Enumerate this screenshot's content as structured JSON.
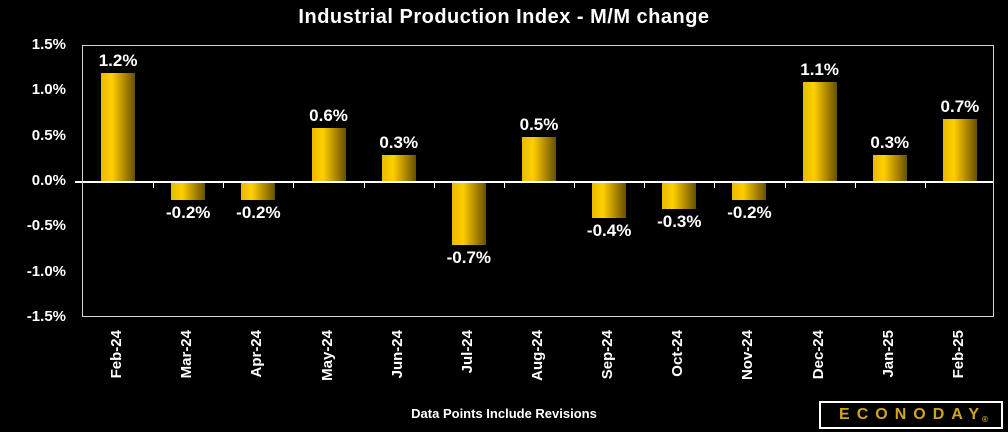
{
  "title": "Industrial Production Index - M/M change",
  "chart_data": {
    "type": "bar",
    "title": "Industrial Production Index - M/M change",
    "categories": [
      "Feb-24",
      "Mar-24",
      "Apr-24",
      "May-24",
      "Jun-24",
      "Jul-24",
      "Aug-24",
      "Sep-24",
      "Oct-24",
      "Nov-24",
      "Dec-24",
      "Jan-25",
      "Feb-25"
    ],
    "values": [
      1.2,
      -0.2,
      -0.2,
      0.6,
      0.3,
      -0.7,
      0.5,
      -0.4,
      -0.3,
      -0.2,
      1.1,
      0.3,
      0.7
    ],
    "value_labels": [
      "1.2%",
      "-0.2%",
      "-0.2%",
      "0.6%",
      "0.3%",
      "-0.7%",
      "0.5%",
      "-0.4%",
      "-0.3%",
      "-0.2%",
      "1.1%",
      "0.3%",
      "0.7%"
    ],
    "xlabel": "",
    "ylabel": "",
    "ylim": [
      -1.5,
      1.5
    ],
    "ytick_step": 0.5,
    "ytick_labels": [
      "1.5%",
      "1.0%",
      "0.5%",
      "0.0%",
      "-0.5%",
      "-1.0%",
      "-1.5%"
    ],
    "grid": false,
    "legend": false,
    "background": "#000000",
    "colors": {
      "bar_gradient": [
        "#e9b900",
        "#ffd000",
        "#a88200",
        "#635000"
      ],
      "axis_line": "#ffffff",
      "plot_border": "#d4d4d4",
      "text": "#ffffff"
    }
  },
  "footer": {
    "note": "Data Points Include Revisions"
  },
  "logo": {
    "text": "ECONODAY",
    "registered": "®",
    "color": "#d2a41e"
  }
}
